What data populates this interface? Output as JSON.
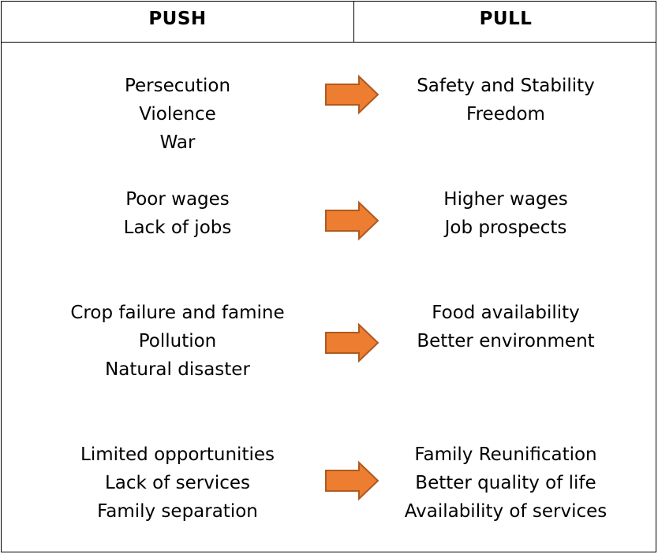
{
  "headers": {
    "push": "PUSH",
    "pull": "PULL"
  },
  "rows": [
    {
      "push": [
        "Persecution",
        "Violence",
        "War"
      ],
      "pull": [
        "Safety and Stability",
        "Freedom"
      ]
    },
    {
      "push": [
        "Poor wages",
        "Lack of jobs"
      ],
      "pull": [
        "Higher wages",
        "Job prospects"
      ]
    },
    {
      "push": [
        "Crop failure and famine",
        "Pollution",
        "Natural disaster"
      ],
      "pull": [
        "Food availability",
        "Better environment"
      ]
    },
    {
      "push": [
        "Limited opportunities",
        "Lack of services",
        "Family separation"
      ],
      "pull": [
        "Family Reunification",
        "Better quality of life",
        "Availability of services"
      ]
    }
  ],
  "colors": {
    "arrow_fill": "#ED7D31",
    "arrow_stroke": "#AE5A21",
    "border": "#000000"
  },
  "icons": {
    "connector": "right-arrow-icon"
  }
}
